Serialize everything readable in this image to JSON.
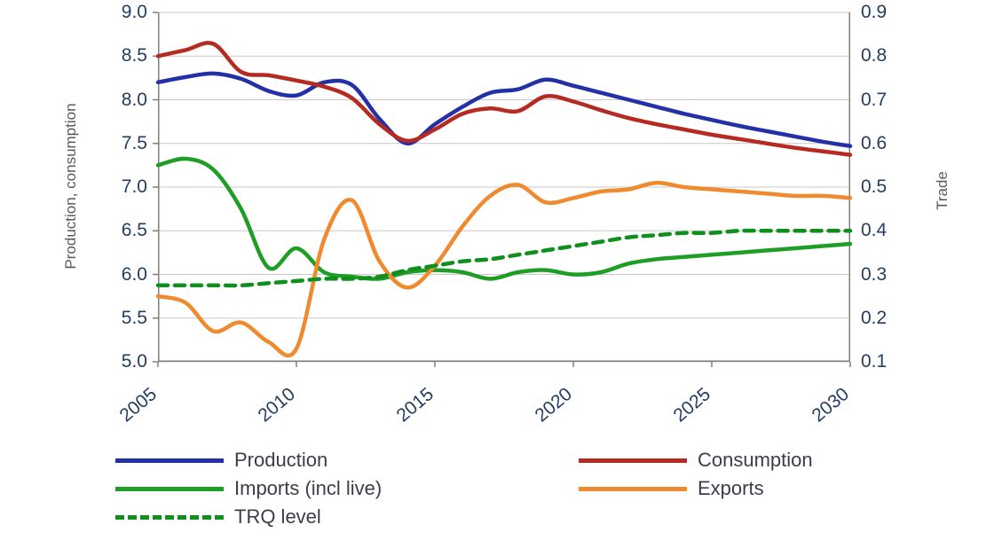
{
  "chart_data": {
    "type": "line",
    "title": "",
    "x": [
      2005,
      2006,
      2007,
      2008,
      2009,
      2010,
      2011,
      2012,
      2013,
      2014,
      2015,
      2016,
      2017,
      2018,
      2019,
      2020,
      2021,
      2022,
      2023,
      2024,
      2025,
      2026,
      2027,
      2028,
      2029,
      2030
    ],
    "x_ticks": [
      2005,
      2010,
      2015,
      2020,
      2025,
      2030
    ],
    "left_axis": {
      "label": "Production, consumption",
      "min": 5.0,
      "max": 9.0,
      "step": 0.5
    },
    "right_axis": {
      "label": "Trade",
      "min": 0.1,
      "max": 0.9,
      "step": 0.1
    },
    "grid": true,
    "legend_position": "bottom",
    "colors": {
      "grid": "#c9c9c9",
      "axis": "#7f7f7f"
    },
    "series": [
      {
        "name": "Production",
        "axis": "left",
        "color": "#2430a6",
        "style": "solid",
        "values": [
          8.2,
          8.26,
          8.3,
          8.24,
          8.1,
          8.05,
          8.2,
          8.17,
          7.78,
          7.5,
          7.72,
          7.92,
          8.08,
          8.12,
          8.23,
          8.16,
          8.08,
          8.0,
          7.92,
          7.84,
          7.77,
          7.7,
          7.64,
          7.58,
          7.52,
          7.47
        ]
      },
      {
        "name": "Consumption",
        "axis": "left",
        "color": "#b52a21",
        "style": "solid",
        "values": [
          8.5,
          8.57,
          8.64,
          8.32,
          8.28,
          8.22,
          8.15,
          8.02,
          7.72,
          7.53,
          7.66,
          7.84,
          7.9,
          7.87,
          8.04,
          7.98,
          7.88,
          7.79,
          7.72,
          7.66,
          7.6,
          7.55,
          7.5,
          7.45,
          7.41,
          7.37
        ]
      },
      {
        "name": "Imports (incl live)",
        "axis": "right",
        "color": "#1e9e24",
        "style": "solid",
        "values": [
          0.55,
          0.565,
          0.54,
          0.45,
          0.315,
          0.36,
          0.305,
          0.295,
          0.29,
          0.305,
          0.31,
          0.305,
          0.29,
          0.305,
          0.31,
          0.3,
          0.305,
          0.325,
          0.335,
          0.34,
          0.345,
          0.35,
          0.355,
          0.36,
          0.365,
          0.37
        ]
      },
      {
        "name": "Exports",
        "axis": "right",
        "color": "#f08a2e",
        "style": "solid",
        "values": [
          0.25,
          0.235,
          0.17,
          0.19,
          0.145,
          0.13,
          0.38,
          0.47,
          0.33,
          0.27,
          0.32,
          0.41,
          0.48,
          0.505,
          0.465,
          0.475,
          0.49,
          0.495,
          0.51,
          0.5,
          0.495,
          0.49,
          0.485,
          0.48,
          0.48,
          0.475
        ]
      },
      {
        "name": "TRQ level",
        "axis": "right",
        "color": "#0f8f1c",
        "style": "dashed",
        "values": [
          0.275,
          0.275,
          0.275,
          0.275,
          0.28,
          0.285,
          0.29,
          0.29,
          0.295,
          0.31,
          0.32,
          0.33,
          0.335,
          0.345,
          0.355,
          0.365,
          0.375,
          0.385,
          0.39,
          0.395,
          0.395,
          0.4,
          0.4,
          0.4,
          0.4,
          0.4
        ]
      }
    ]
  }
}
